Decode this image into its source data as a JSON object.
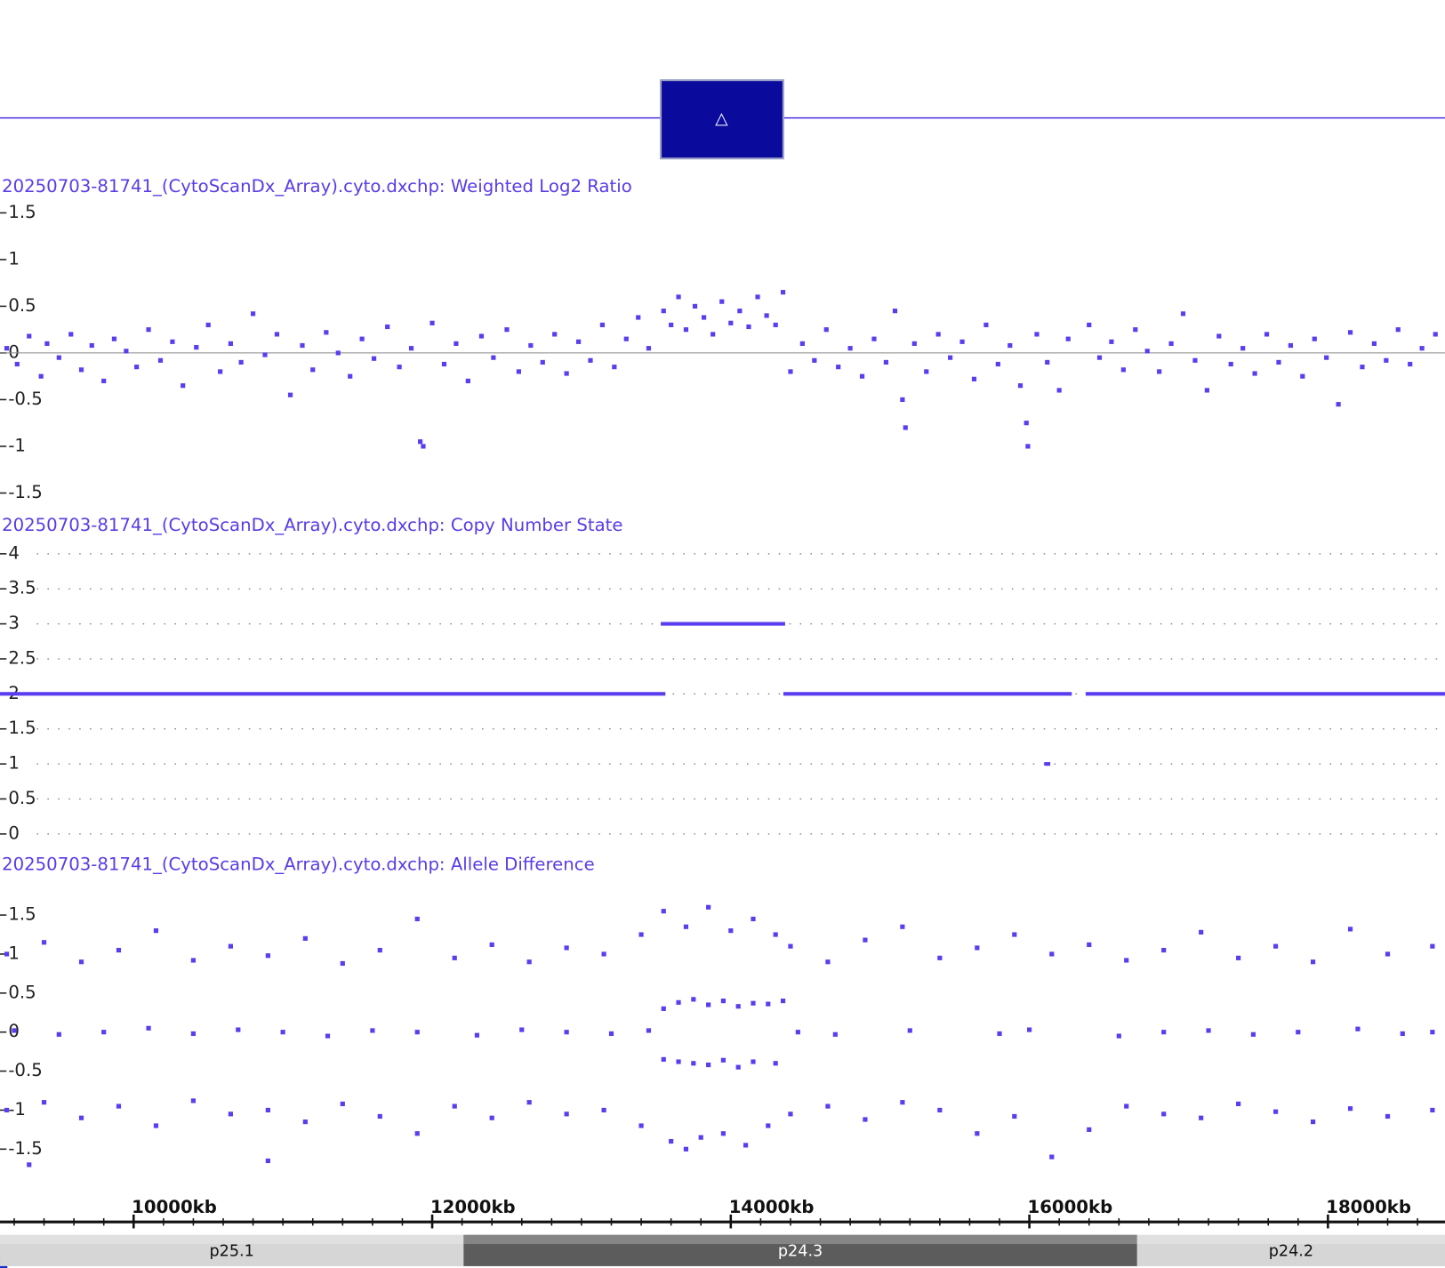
{
  "header": {
    "toggle_label": "△"
  },
  "chart_data": [
    {
      "type": "scatter",
      "title": "20250703-81741_(CytoScanDx_Array).cyto.dxchp: Weighted Log2 Ratio",
      "xlim": [
        9105,
        18784
      ],
      "ylim": [
        -1.5,
        1.5
      ],
      "yticks": [
        1.5,
        1,
        0.5,
        0,
        -0.5,
        -1,
        -1.5
      ],
      "zero_line": true,
      "series": [
        {
          "color": "#5b3df0",
          "x": [
            9150,
            9220,
            9300,
            9380,
            9420,
            9500,
            9580,
            9650,
            9720,
            9800,
            9870,
            9950,
            10020,
            10100,
            10180,
            10260,
            10330,
            10420,
            10500,
            10580,
            10650,
            10720,
            10800,
            10880,
            10960,
            11050,
            11130,
            11200,
            11290,
            11370,
            11450,
            11530,
            11610,
            11700,
            11780,
            11860,
            11920,
            11940,
            12000,
            12080,
            12160,
            12240,
            12330,
            12410,
            12500,
            12580,
            12660,
            12740,
            12820,
            12900,
            12980,
            13060,
            13140,
            13220,
            13300,
            13380,
            13450,
            13550,
            13600,
            13650,
            13700,
            13760,
            13820,
            13880,
            13940,
            14000,
            14060,
            14120,
            14180,
            14240,
            14300,
            14350,
            14400,
            14480,
            14560,
            14640,
            14720,
            14800,
            14880,
            14960,
            15040,
            15100,
            15150,
            15170,
            15230,
            15310,
            15390,
            15470,
            15550,
            15630,
            15710,
            15790,
            15870,
            15940,
            15980,
            15990,
            16050,
            16120,
            16200,
            16260,
            16400,
            16470,
            16550,
            16630,
            16710,
            16790,
            16870,
            16950,
            17030,
            17110,
            17190,
            17270,
            17350,
            17430,
            17510,
            17590,
            17670,
            17750,
            17830,
            17910,
            17990,
            18070,
            18150,
            18230,
            18310,
            18390,
            18470,
            18550,
            18630,
            18720
          ],
          "values": [
            0.05,
            -0.12,
            0.18,
            -0.25,
            0.1,
            -0.05,
            0.2,
            -0.18,
            0.08,
            -0.3,
            0.15,
            0.02,
            -0.15,
            0.25,
            -0.08,
            0.12,
            -0.35,
            0.06,
            0.3,
            -0.2,
            0.1,
            -0.1,
            0.42,
            -0.02,
            0.2,
            -0.45,
            0.08,
            -0.18,
            0.22,
            0,
            -0.25,
            0.15,
            -0.06,
            0.28,
            -0.15,
            0.05,
            -0.95,
            -1,
            0.32,
            -0.12,
            0.1,
            -0.3,
            0.18,
            -0.05,
            0.25,
            -0.2,
            0.08,
            -0.1,
            0.2,
            -0.22,
            0.12,
            -0.08,
            0.3,
            -0.15,
            0.15,
            0.38,
            0.05,
            0.45,
            0.3,
            0.6,
            0.25,
            0.5,
            0.38,
            0.2,
            0.55,
            0.32,
            0.45,
            0.28,
            0.6,
            0.4,
            0.3,
            0.65,
            -0.2,
            0.1,
            -0.08,
            0.25,
            -0.15,
            0.05,
            -0.25,
            0.15,
            -0.1,
            0.45,
            -0.5,
            -0.8,
            0.1,
            -0.2,
            0.2,
            -0.05,
            0.12,
            -0.28,
            0.3,
            -0.12,
            0.08,
            -0.35,
            -0.75,
            -1,
            0.2,
            -0.1,
            -0.4,
            0.15,
            0.3,
            -0.05,
            0.12,
            -0.18,
            0.25,
            0.02,
            -0.2,
            0.1,
            0.42,
            -0.08,
            -0.4,
            0.18,
            -0.12,
            0.05,
            -0.22,
            0.2,
            -0.1,
            0.08,
            -0.25,
            0.15,
            -0.05,
            -0.55,
            0.22,
            -0.15,
            0.1,
            -0.08,
            0.25,
            -0.12,
            0.05,
            0.2
          ]
        }
      ]
    },
    {
      "type": "segments",
      "title": "20250703-81741_(CytoScanDx_Array).cyto.dxchp: Copy Number State",
      "xlim": [
        9105,
        18784
      ],
      "ylim": [
        0,
        4
      ],
      "yticks": [
        4,
        3.5,
        3,
        2.5,
        2,
        1.5,
        1,
        0.5,
        0
      ],
      "grid": "dotted",
      "series": [
        {
          "color": "#5b3df0",
          "start": [
            9105,
            13531,
            14352,
            16377,
            16100
          ],
          "end": [
            13562,
            14364,
            16284,
            18784,
            16140
          ],
          "values": [
            2,
            3,
            2,
            2,
            1
          ]
        }
      ]
    },
    {
      "type": "scatter",
      "title": "20250703-81741_(CytoScanDx_Array).cyto.dxchp: Allele Difference",
      "xlim": [
        9105,
        18784
      ],
      "ylim": [
        -1.5,
        1.5
      ],
      "yticks": [
        1.5,
        1,
        0.5,
        0,
        -0.5,
        -1,
        -1.5
      ],
      "xticks": [
        {
          "value": 10000,
          "label": "10000kb"
        },
        {
          "value": 12000,
          "label": "12000kb"
        },
        {
          "value": 14000,
          "label": "14000kb"
        },
        {
          "value": 16000,
          "label": "16000kb"
        },
        {
          "value": 18000,
          "label": "18000kb"
        }
      ],
      "minor_xticks": [
        9200,
        9400,
        9600,
        9800,
        10200,
        10400,
        10600,
        10800,
        11000,
        11200,
        11400,
        11600,
        11800,
        12200,
        12400,
        12600,
        12800,
        13000,
        13200,
        13400,
        13600,
        13800,
        14200,
        14400,
        14600,
        14800,
        15000,
        15200,
        15400,
        15600,
        15800,
        16200,
        16400,
        16600,
        16800,
        17000,
        17200,
        17400,
        17600,
        17800,
        18200,
        18400,
        18600
      ],
      "series": [
        {
          "color": "#5b3df0",
          "x": [
            9150,
            9400,
            9650,
            9900,
            10150,
            10400,
            10650,
            10900,
            11150,
            11400,
            11650,
            11900,
            12150,
            12400,
            12650,
            12900,
            13150,
            13400,
            14400,
            14650,
            14900,
            15150,
            15400,
            15650,
            15900,
            16150,
            16400,
            16650,
            16900,
            17150,
            17400,
            17650,
            17900,
            18150,
            18400,
            18700,
            13550,
            13700,
            13850,
            14000,
            14150,
            14300,
            13550,
            13650,
            13750,
            13850,
            13950,
            14050,
            14150,
            14250,
            14350,
            13550,
            13650,
            13750,
            13850,
            13950,
            14050,
            14150,
            14300,
            13600,
            13700,
            13800,
            13950,
            14100,
            14250,
            9200,
            9500,
            9800,
            10100,
            10400,
            10700,
            11000,
            11300,
            11600,
            11900,
            12300,
            12600,
            12900,
            13200,
            13450,
            14450,
            14700,
            15200,
            15800,
            16000,
            16600,
            16900,
            17200,
            17500,
            17800,
            18200,
            18500,
            18700,
            9150,
            9400,
            9650,
            9900,
            10150,
            10400,
            10650,
            10900,
            11150,
            11400,
            11650,
            11900,
            12150,
            12400,
            12650,
            12900,
            13150,
            13400,
            14400,
            14650,
            14900,
            15150,
            15400,
            15650,
            15900,
            16150,
            16400,
            16650,
            16900,
            17150,
            17400,
            17650,
            17900,
            18150,
            18400,
            18700,
            9300,
            10900
          ],
          "values": [
            1,
            1.15,
            0.9,
            1.05,
            1.3,
            0.92,
            1.1,
            0.98,
            1.2,
            0.88,
            1.05,
            1.45,
            0.95,
            1.12,
            0.9,
            1.08,
            1,
            1.25,
            1.1,
            0.9,
            1.18,
            1.35,
            0.95,
            1.08,
            1.25,
            1,
            1.12,
            0.92,
            1.05,
            1.28,
            0.95,
            1.1,
            0.9,
            1.32,
            1,
            1.1,
            1.55,
            1.35,
            1.6,
            1.3,
            1.45,
            1.25,
            0.3,
            0.38,
            0.42,
            0.35,
            0.4,
            0.33,
            0.37,
            0.36,
            0.4,
            -0.35,
            -0.38,
            -0.4,
            -0.42,
            -0.36,
            -0.45,
            -0.38,
            -0.4,
            -1.4,
            -1.5,
            -1.35,
            -1.3,
            -1.45,
            -1.2,
            0.02,
            -0.03,
            0,
            0.05,
            -0.02,
            0.03,
            0,
            -0.05,
            0.02,
            0,
            -0.04,
            0.03,
            0,
            -0.02,
            0.02,
            0,
            -0.03,
            0.02,
            -0.02,
            0.03,
            -0.05,
            0,
            0.02,
            -0.03,
            0,
            0.04,
            -0.02,
            0,
            -1,
            -0.9,
            -1.1,
            -0.95,
            -1.2,
            -0.88,
            -1.05,
            -1,
            -1.15,
            -0.92,
            -1.08,
            -1.3,
            -0.95,
            -1.1,
            -0.9,
            -1.05,
            -1,
            -1.2,
            -1.05,
            -0.95,
            -1.12,
            -0.9,
            -1,
            -1.3,
            -1.08,
            -1.6,
            -1.25,
            -0.95,
            -1.05,
            -1.1,
            -0.92,
            -1.02,
            -1.15,
            -0.98,
            -1.08,
            -1,
            -1.7,
            -1.65
          ]
        }
      ]
    }
  ],
  "ideogram": {
    "bands": [
      {
        "label": "p25.1",
        "start": 9105,
        "end": 12210,
        "color": "#d6d6d6",
        "text_color": "#111111"
      },
      {
        "label": "p24.3",
        "start": 12210,
        "end": 16722,
        "color": "#5c5c5c",
        "text_color": "#ffffff"
      },
      {
        "label": "p24.2",
        "start": 16722,
        "end": 18784,
        "color": "#d6d6d6",
        "text_color": "#111111"
      }
    ]
  }
}
